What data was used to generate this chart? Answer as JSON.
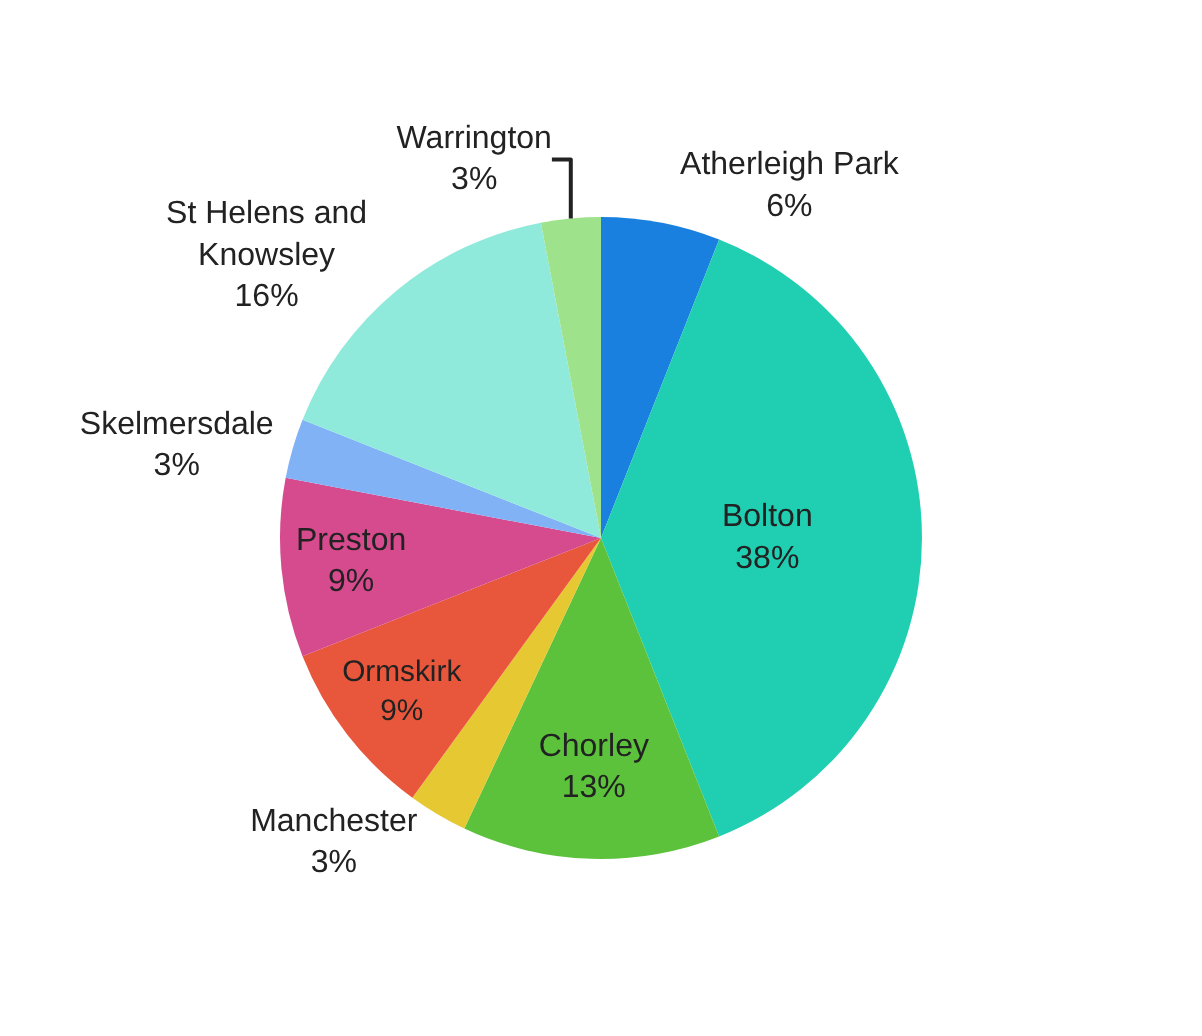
{
  "chart_data": {
    "type": "pie",
    "categories": [
      "Atherleigh Park",
      "Bolton",
      "Chorley",
      "Manchester",
      "Ormskirk",
      "Preston",
      "Skelmersdale",
      "St Helens and Knowsley",
      "Warrington"
    ],
    "values": [
      6,
      38,
      13,
      3,
      9,
      9,
      3,
      16,
      3
    ],
    "value_labels": [
      "6%",
      "38%",
      "13%",
      "3%",
      "9%",
      "9%",
      "3%",
      "16%",
      "3%"
    ],
    "colors": [
      "#1a80e0",
      "#20cfb2",
      "#5cc23c",
      "#e6c832",
      "#e8573c",
      "#d64a8e",
      "#80b2f5",
      "#90eadb",
      "#9ee38c"
    ],
    "legend": false
  }
}
